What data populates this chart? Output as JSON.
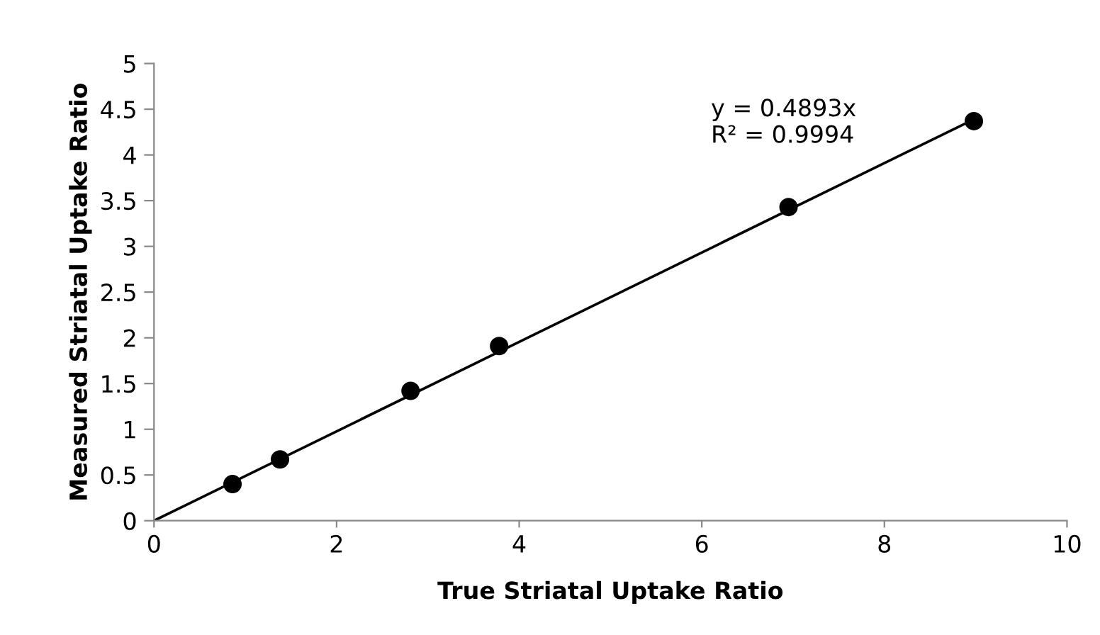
{
  "chart_data": {
    "type": "scatter",
    "xlabel": "True Striatal Uptake Ratio",
    "ylabel": "Measured Striatal Uptake Ratio",
    "xlim": [
      0,
      10
    ],
    "xticks": [
      0,
      2,
      4,
      6,
      8,
      10
    ],
    "ylim": [
      0,
      5
    ],
    "yticks": [
      0,
      0.5,
      1,
      1.5,
      2,
      2.5,
      3,
      3.5,
      4,
      4.5,
      5
    ],
    "grid": false,
    "legend": false,
    "series": [
      {
        "color": "#000000",
        "marker": "circle",
        "x": [
          0.86,
          1.38,
          2.81,
          3.78,
          6.95,
          8.98
        ],
        "values": [
          0.4,
          0.67,
          1.42,
          1.91,
          3.43,
          4.37
        ]
      },
      {
        "type": "line",
        "color": "#000000",
        "marker": "none",
        "line_style": "solid",
        "x": [
          0,
          8.98
        ],
        "values": [
          0,
          4.39
        ]
      }
    ],
    "annotations": [
      "y = 0.4893x\nR² = 0.9994"
    ]
  }
}
